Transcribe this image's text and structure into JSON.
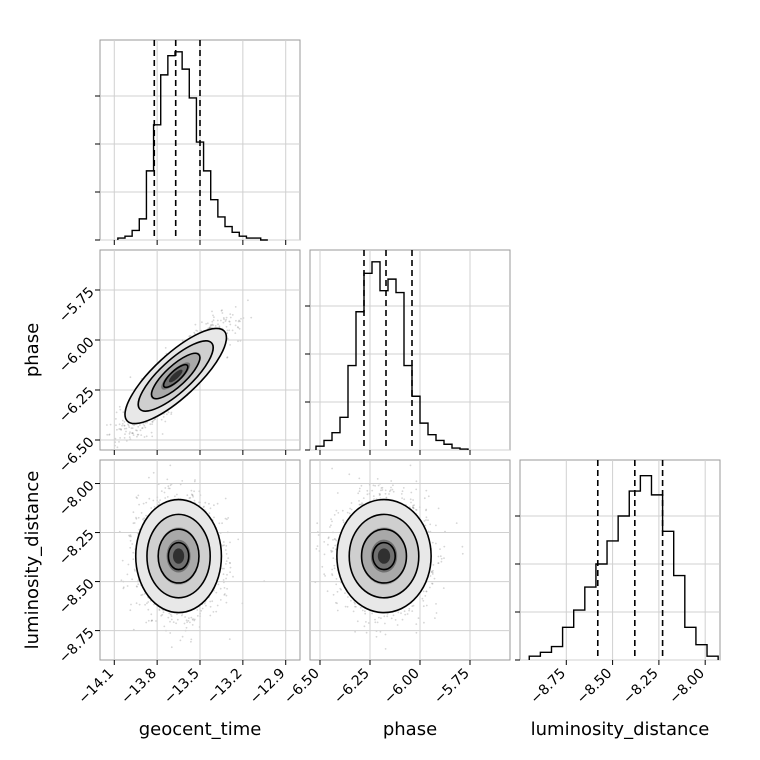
{
  "chart_data": {
    "type": "corner",
    "parameters": [
      "geocent_time",
      "phase",
      "luminosity_distance"
    ],
    "grid": true,
    "panels": {
      "hist_geocent_time": {
        "type": "histogram",
        "param": "geocent_time",
        "xlim": [
          -14.2,
          -12.8
        ],
        "bins": [
          {
            "x": -14.05,
            "count": 0.01
          },
          {
            "x": -14.0,
            "count": 0.02
          },
          {
            "x": -13.95,
            "count": 0.05
          },
          {
            "x": -13.9,
            "count": 0.11
          },
          {
            "x": -13.85,
            "count": 0.36
          },
          {
            "x": -13.8,
            "count": 0.6
          },
          {
            "x": -13.75,
            "count": 0.86
          },
          {
            "x": -13.7,
            "count": 0.96
          },
          {
            "x": -13.65,
            "count": 0.98
          },
          {
            "x": -13.6,
            "count": 0.89
          },
          {
            "x": -13.55,
            "count": 0.74
          },
          {
            "x": -13.5,
            "count": 0.51
          },
          {
            "x": -13.45,
            "count": 0.36
          },
          {
            "x": -13.4,
            "count": 0.21
          },
          {
            "x": -13.35,
            "count": 0.12
          },
          {
            "x": -13.3,
            "count": 0.07
          },
          {
            "x": -13.25,
            "count": 0.04
          },
          {
            "x": -13.2,
            "count": 0.02
          },
          {
            "x": -13.15,
            "count": 0.01
          },
          {
            "x": -13.1,
            "count": 0.01
          },
          {
            "x": -13.05,
            "count": 0.0
          }
        ],
        "quantiles": [
          -13.82,
          -13.67,
          -13.5
        ]
      },
      "hist_phase": {
        "type": "histogram",
        "param": "phase",
        "xlim": [
          -6.55,
          -5.55
        ],
        "bins": [
          {
            "x": -6.5,
            "count": 0.02
          },
          {
            "x": -6.46,
            "count": 0.05
          },
          {
            "x": -6.42,
            "count": 0.09
          },
          {
            "x": -6.38,
            "count": 0.17
          },
          {
            "x": -6.34,
            "count": 0.44
          },
          {
            "x": -6.3,
            "count": 0.72
          },
          {
            "x": -6.26,
            "count": 0.92
          },
          {
            "x": -6.22,
            "count": 0.98
          },
          {
            "x": -6.18,
            "count": 0.83
          },
          {
            "x": -6.14,
            "count": 0.89
          },
          {
            "x": -6.1,
            "count": 0.82
          },
          {
            "x": -6.06,
            "count": 0.44
          },
          {
            "x": -6.02,
            "count": 0.28
          },
          {
            "x": -5.98,
            "count": 0.14
          },
          {
            "x": -5.94,
            "count": 0.08
          },
          {
            "x": -5.9,
            "count": 0.05
          },
          {
            "x": -5.86,
            "count": 0.03
          },
          {
            "x": -5.82,
            "count": 0.01
          },
          {
            "x": -5.78,
            "count": 0.005
          }
        ],
        "quantiles": [
          -6.28,
          -6.17,
          -6.04
        ]
      },
      "hist_luminosity_distance": {
        "type": "histogram",
        "param": "luminosity_distance",
        "xlim": [
          -9.0,
          -7.92
        ],
        "bins": [
          {
            "x": -8.92,
            "count": 0.02
          },
          {
            "x": -8.86,
            "count": 0.04
          },
          {
            "x": -8.8,
            "count": 0.07
          },
          {
            "x": -8.74,
            "count": 0.17
          },
          {
            "x": -8.68,
            "count": 0.26
          },
          {
            "x": -8.62,
            "count": 0.38
          },
          {
            "x": -8.56,
            "count": 0.5
          },
          {
            "x": -8.5,
            "count": 0.62
          },
          {
            "x": -8.44,
            "count": 0.75
          },
          {
            "x": -8.38,
            "count": 0.88
          },
          {
            "x": -8.32,
            "count": 0.96
          },
          {
            "x": -8.26,
            "count": 0.86
          },
          {
            "x": -8.2,
            "count": 0.67
          },
          {
            "x": -8.14,
            "count": 0.44
          },
          {
            "x": -8.08,
            "count": 0.17
          },
          {
            "x": -8.02,
            "count": 0.08
          },
          {
            "x": -7.96,
            "count": 0.02
          }
        ],
        "quantiles": [
          -8.58,
          -8.38,
          -8.23
        ]
      },
      "scatter_phase_vs_geocent_time": {
        "type": "2d-density",
        "x_param": "geocent_time",
        "y_param": "phase",
        "xlim": [
          -14.2,
          -12.8
        ],
        "ylim": [
          -6.55,
          -5.55
        ],
        "mean": [
          -13.67,
          -6.18
        ],
        "std": [
          0.16,
          0.12
        ],
        "correlation": 0.88
      },
      "scatter_luminosity_distance_vs_geocent_time": {
        "type": "2d-density",
        "x_param": "geocent_time",
        "y_param": "luminosity_distance",
        "xlim": [
          -14.2,
          -12.8
        ],
        "ylim": [
          -8.9,
          -7.88
        ],
        "mean": [
          -13.65,
          -8.37
        ],
        "std": [
          0.14,
          0.14
        ],
        "correlation": 0.0
      },
      "scatter_luminosity_distance_vs_phase": {
        "type": "2d-density",
        "x_param": "phase",
        "y_param": "luminosity_distance",
        "xlim": [
          -6.55,
          -5.55
        ],
        "ylim": [
          -8.9,
          -7.88
        ],
        "mean": [
          -6.18,
          -8.37
        ],
        "std": [
          0.11,
          0.14
        ],
        "correlation": 0.0
      }
    },
    "tick_labels": {
      "geocent_time": [
        "−14.1",
        "−13.8",
        "−13.5",
        "−13.2",
        "−12.9"
      ],
      "phase_x": [
        "−6.50",
        "−6.25",
        "−6.00",
        "−5.75"
      ],
      "phase_y": [
        "−6.50",
        "−6.25",
        "−6.00",
        "−5.75"
      ],
      "luminosity_distance_x": [
        "−8.75",
        "−8.50",
        "−8.25",
        "−8.00"
      ],
      "luminosity_distance_y": [
        "−8.75",
        "−8.50",
        "−8.25",
        "−8.00"
      ]
    },
    "axis_labels": {
      "x": [
        "geocent_time",
        "phase",
        "luminosity_distance"
      ],
      "y": [
        "phase",
        "luminosity_distance"
      ]
    }
  }
}
